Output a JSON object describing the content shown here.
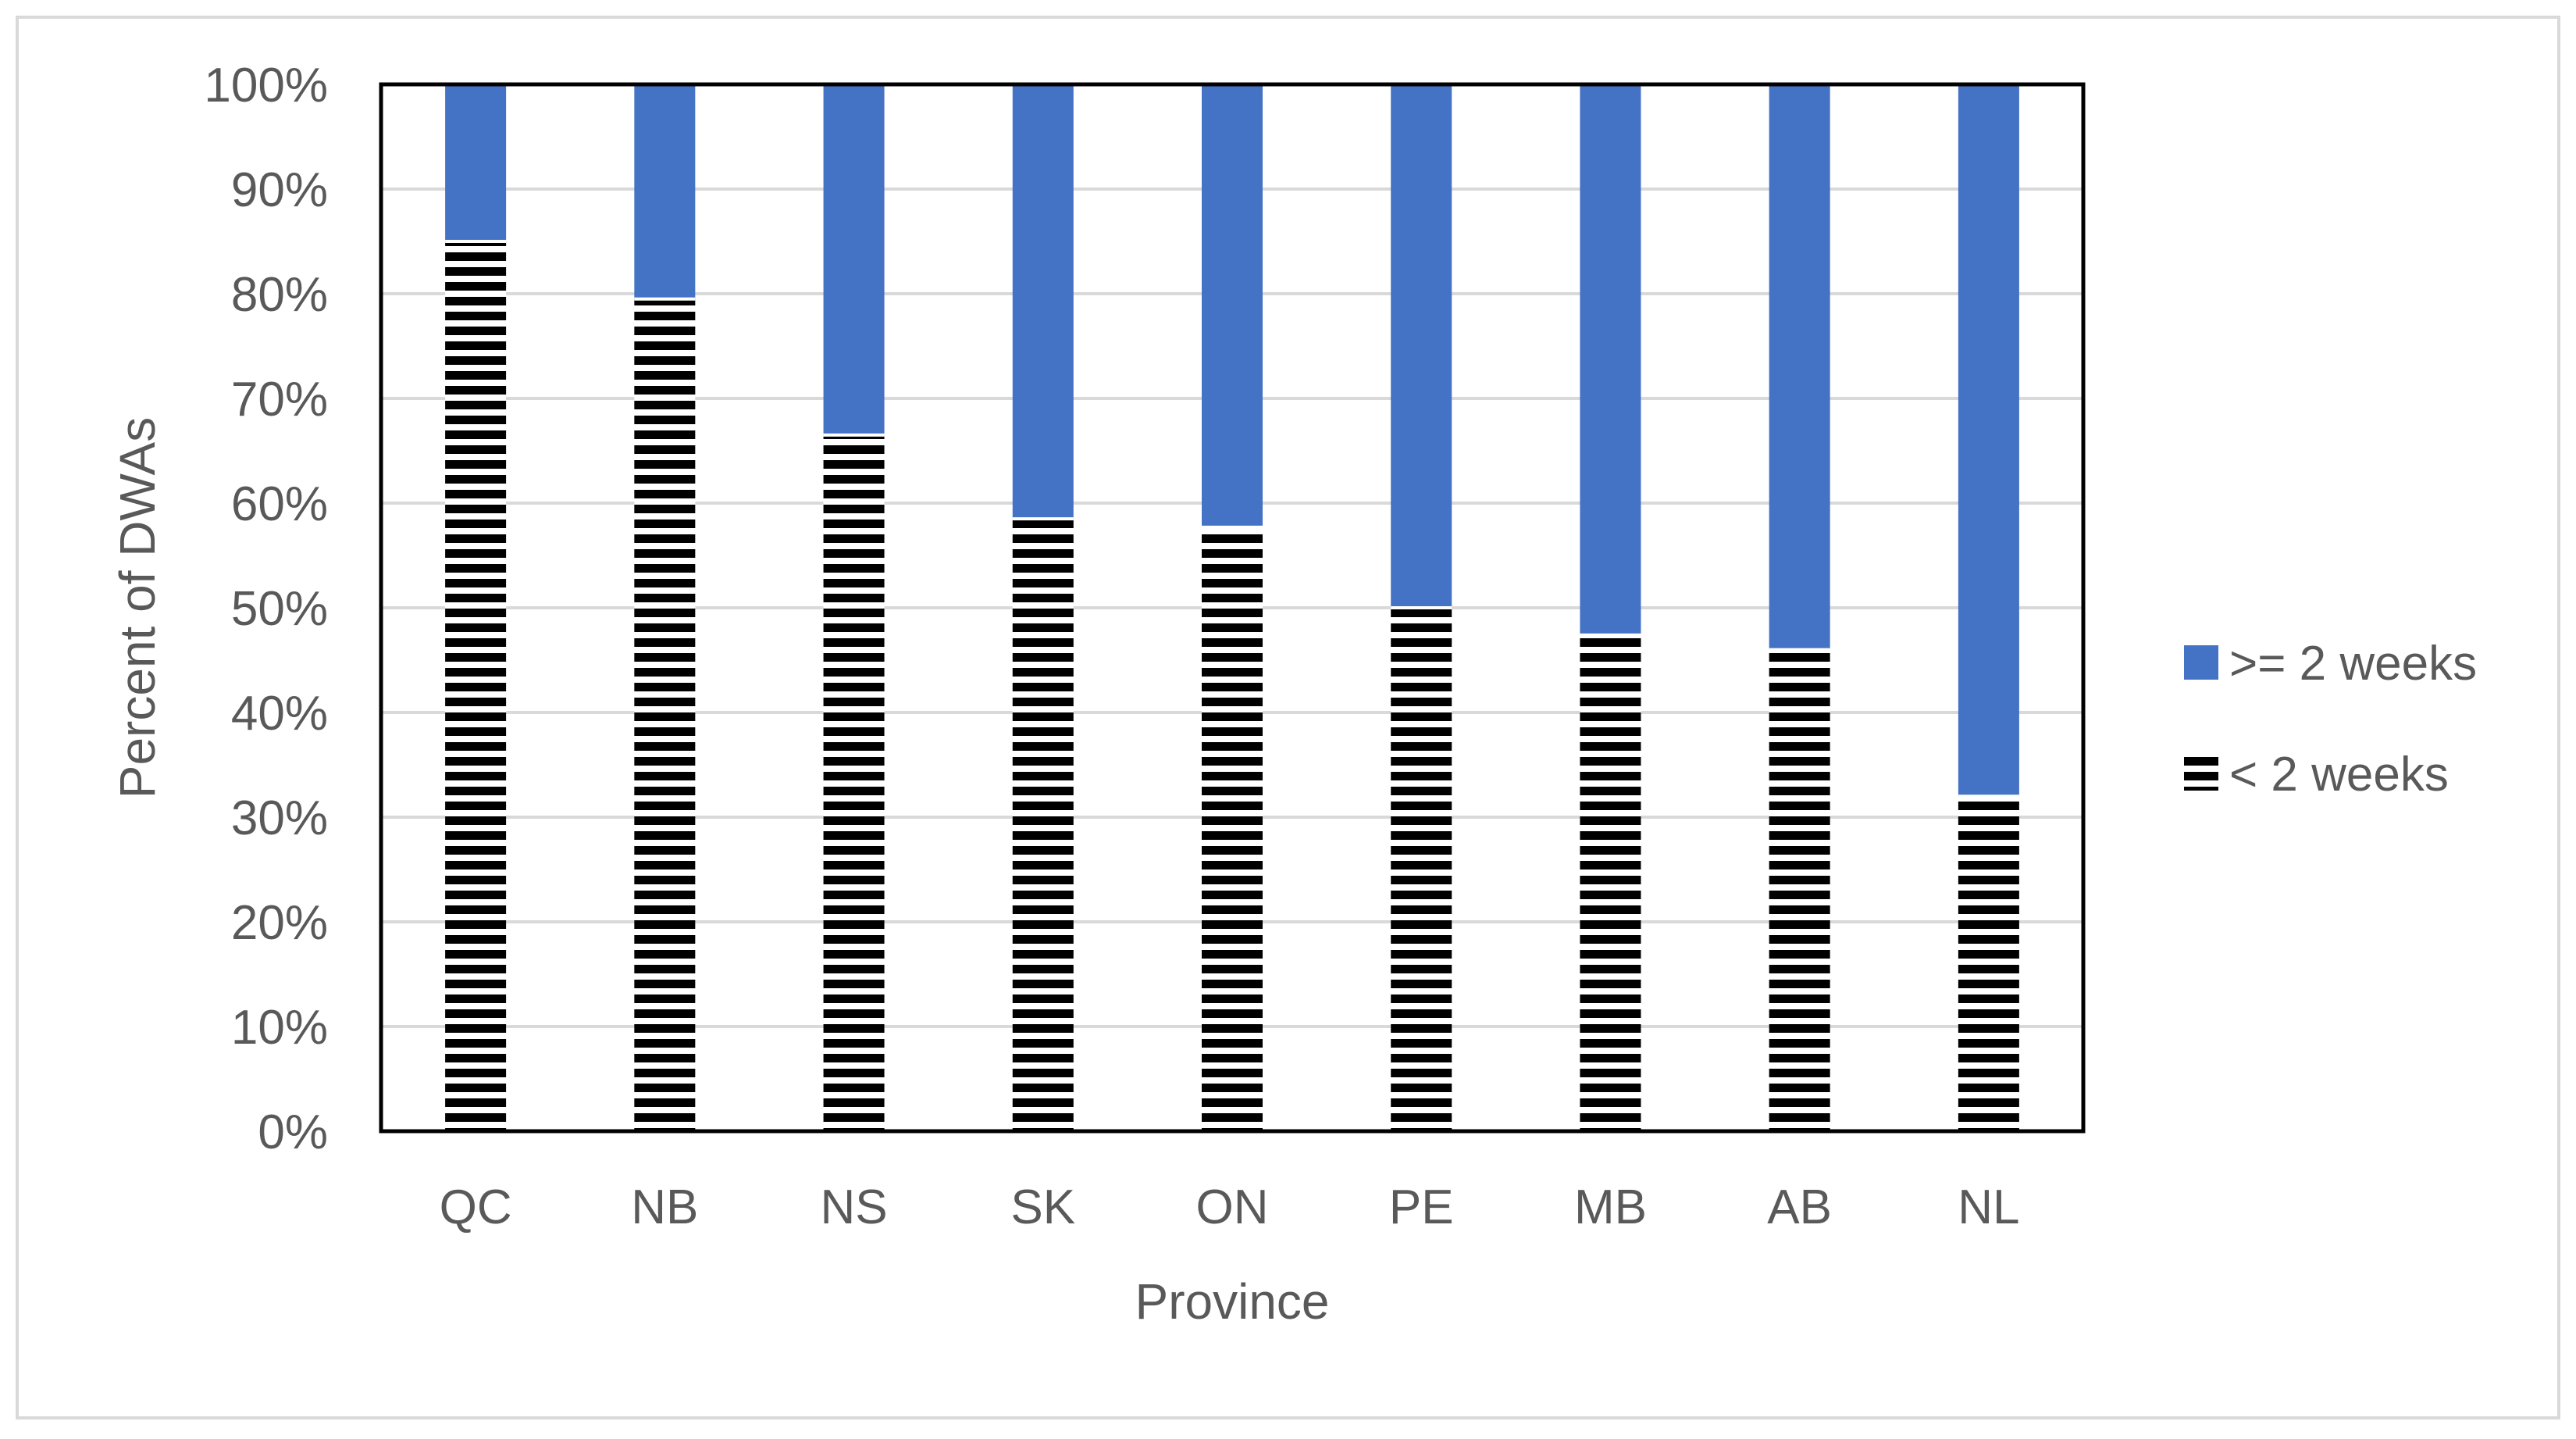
{
  "chart_data": {
    "type": "bar",
    "stacked": true,
    "normalized": true,
    "title": "",
    "xlabel": "Province",
    "ylabel": "Percent of DWAs",
    "categories": [
      "QC",
      "NB",
      "NS",
      "SK",
      "ON",
      "PE",
      "MB",
      "AB",
      "NL"
    ],
    "series": [
      {
        "name": "< 2 weeks",
        "values": [
          85,
          79.5,
          66.5,
          58.5,
          57.7,
          50,
          47.4,
          46,
          32
        ],
        "pattern": "horizontal-stripes",
        "color": "#000000"
      },
      {
        "name": ">= 2 weeks",
        "values": [
          15,
          20.5,
          33.5,
          41.5,
          42.3,
          50,
          52.6,
          54,
          68
        ],
        "color": "#4472C4"
      }
    ],
    "ylim": [
      0,
      100
    ],
    "yticks": [
      "0%",
      "10%",
      "20%",
      "30%",
      "40%",
      "50%",
      "60%",
      "70%",
      "80%",
      "90%",
      "100%"
    ],
    "grid": true,
    "legend_position": "right",
    "legend_order": [
      ">= 2 weeks",
      "< 2 weeks"
    ]
  }
}
